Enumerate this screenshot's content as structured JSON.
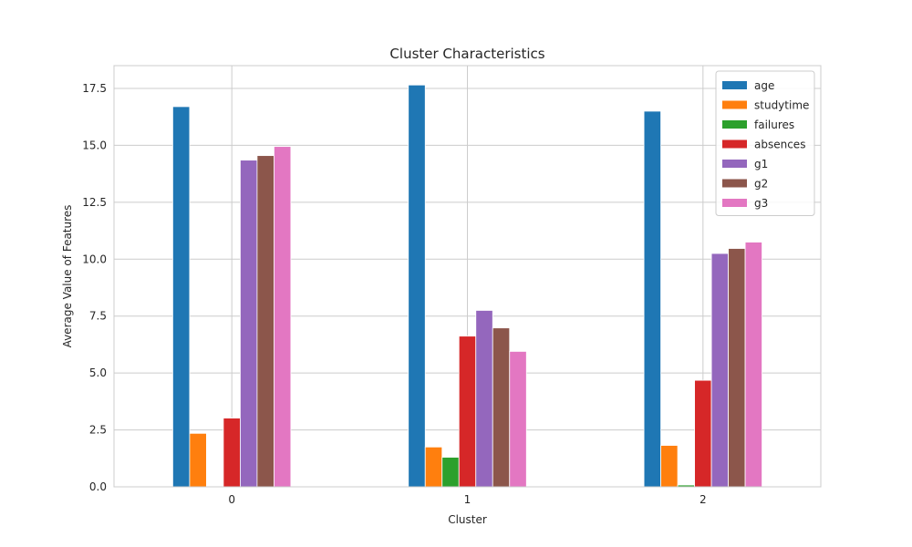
{
  "chart_data": {
    "type": "bar",
    "title": "Cluster Characteristics",
    "xlabel": "Cluster",
    "ylabel": "Average Value of Features",
    "categories": [
      "0",
      "1",
      "2"
    ],
    "ylim": [
      0,
      18.5
    ],
    "yticks": [
      "0.0",
      "2.5",
      "5.0",
      "7.5",
      "10.0",
      "12.5",
      "15.0",
      "17.5"
    ],
    "grid": true,
    "legend_position": "top-right",
    "series": [
      {
        "name": "age",
        "color": "#1f77b4",
        "values": [
          16.7,
          17.65,
          16.5
        ]
      },
      {
        "name": "studytime",
        "color": "#ff7f0e",
        "values": [
          2.35,
          1.75,
          1.82
        ]
      },
      {
        "name": "failures",
        "color": "#2ca02c",
        "values": [
          0.0,
          1.3,
          0.08
        ]
      },
      {
        "name": "absences",
        "color": "#d62728",
        "values": [
          3.02,
          6.62,
          4.68
        ]
      },
      {
        "name": "g1",
        "color": "#9467bd",
        "values": [
          14.35,
          7.75,
          10.25
        ]
      },
      {
        "name": "g2",
        "color": "#8c564b",
        "values": [
          14.55,
          6.98,
          10.47
        ]
      },
      {
        "name": "g3",
        "color": "#e377c2",
        "values": [
          14.95,
          5.95,
          10.75
        ]
      }
    ]
  }
}
